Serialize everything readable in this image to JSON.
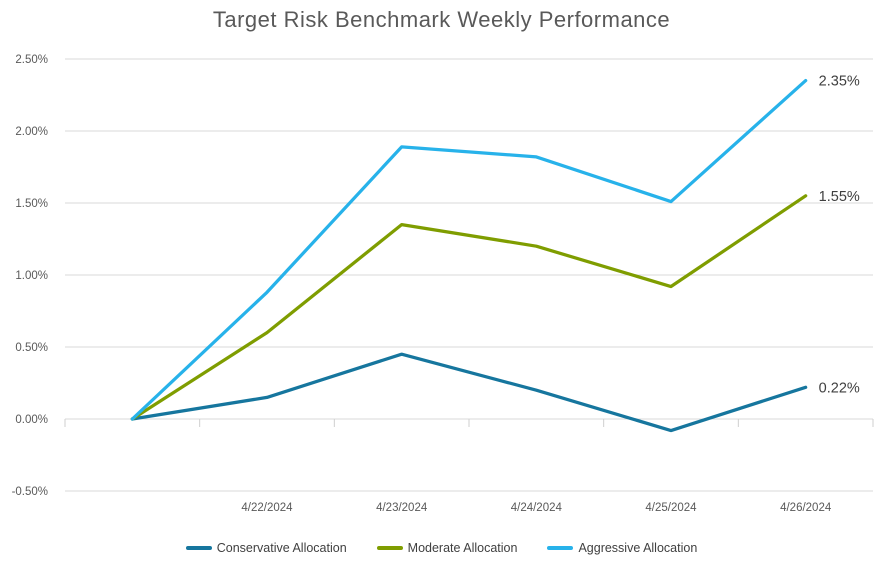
{
  "title": "Target Risk Benchmark Weekly Performance",
  "colors": {
    "background": "#ffffff",
    "title_text": "#595959",
    "axis_text": "#595959",
    "gridline": "#d9d9d9",
    "tick_mark": "#cfcfcf",
    "data_label_text": "#3f3f3f"
  },
  "chart_data": {
    "type": "line",
    "title": "Target Risk Benchmark Weekly Performance",
    "categories": [
      "",
      "4/22/2024",
      "4/23/2024",
      "4/24/2024",
      "4/25/2024",
      "4/26/2024"
    ],
    "series": [
      {
        "name": "Conservative Allocation",
        "color": "#16769e",
        "values": [
          0.0,
          0.15,
          0.45,
          0.2,
          -0.08,
          0.22
        ],
        "end_label": "0.22%"
      },
      {
        "name": "Moderate Allocation",
        "color": "#7f9d00",
        "values": [
          0.0,
          0.6,
          1.35,
          1.2,
          0.92,
          1.55
        ],
        "end_label": "1.55%"
      },
      {
        "name": "Aggressive Allocation",
        "color": "#27b2ea",
        "values": [
          0.0,
          0.88,
          1.89,
          1.82,
          1.51,
          2.35
        ],
        "end_label": "2.35%"
      }
    ],
    "y_axis": {
      "min": -0.5,
      "max": 2.5,
      "step": 0.5,
      "tick_labels": [
        "2.50%",
        "2.00%",
        "1.50%",
        "1.00%",
        "0.50%",
        "0.00%",
        "-0.50%"
      ],
      "unit": "percent"
    },
    "grid": true,
    "legend_position": "bottom"
  }
}
